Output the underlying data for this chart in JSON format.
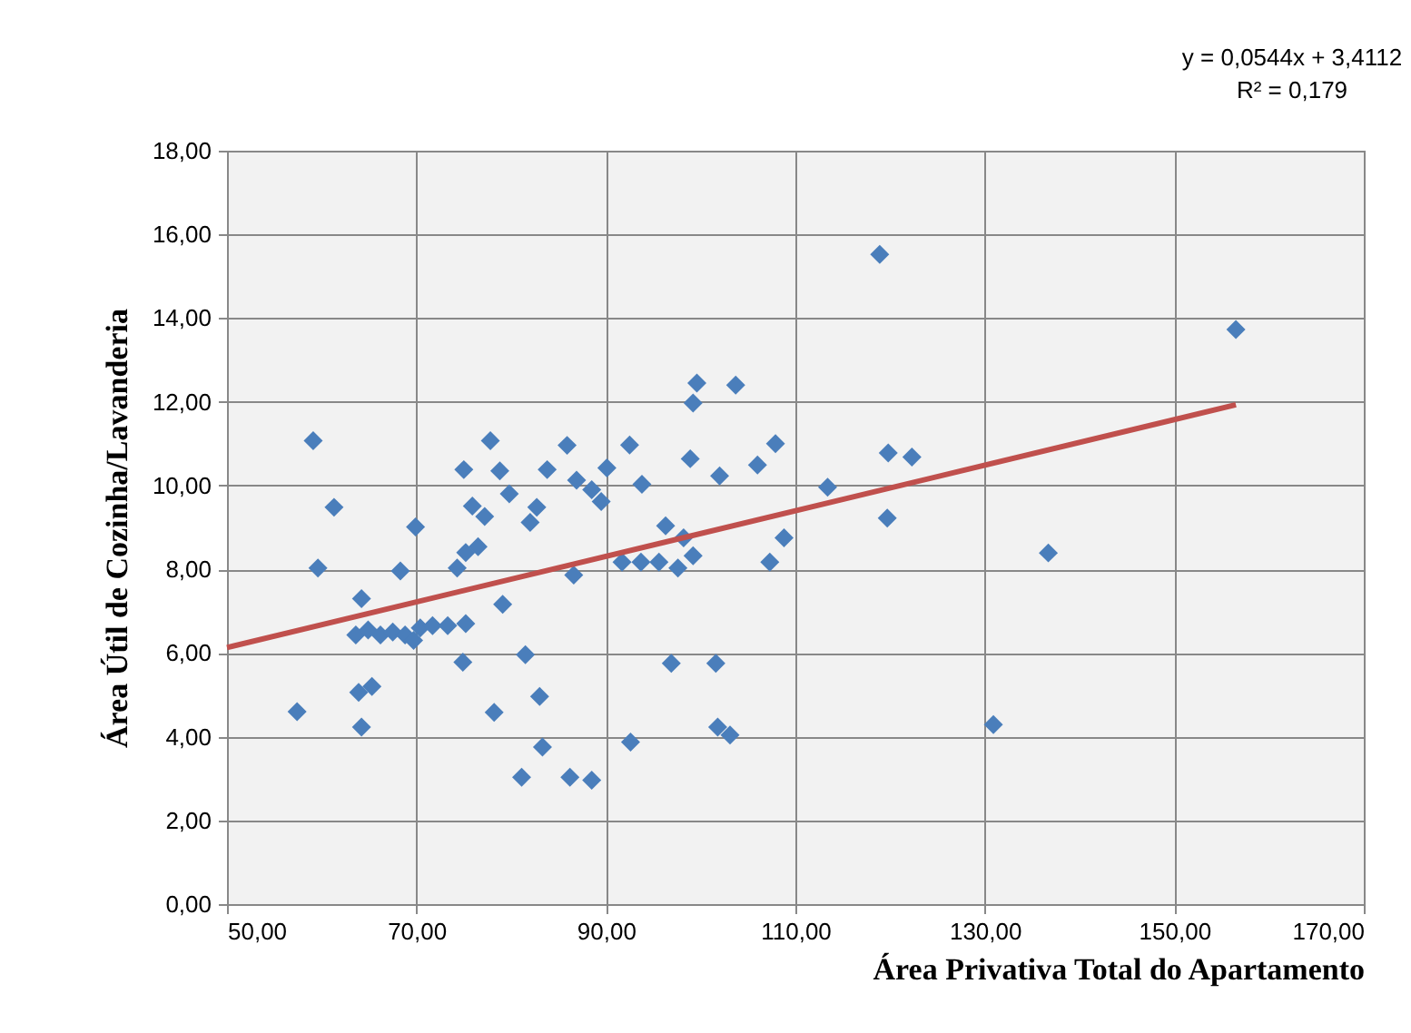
{
  "chart_data": {
    "type": "scatter",
    "xlabel": "Área Privativa Total do Apartamento",
    "ylabel": "Área Útil de Cozinha/Lavanderia",
    "annotations": [
      "y = 0,0544x + 3,4112",
      "R² = 0,179"
    ],
    "xlim": [
      50,
      170
    ],
    "xticks": [
      {
        "value": 50,
        "label": "50,00"
      },
      {
        "value": 70,
        "label": "70,00"
      },
      {
        "value": 90,
        "label": "90,00"
      },
      {
        "value": 110,
        "label": "110,00"
      },
      {
        "value": 130,
        "label": "130,00"
      },
      {
        "value": 150,
        "label": "150,00"
      },
      {
        "value": 170,
        "label": "170,00"
      }
    ],
    "ylim": [
      0,
      18
    ],
    "yticks": [
      {
        "value": 0,
        "label": "0,00"
      },
      {
        "value": 2,
        "label": "2,00"
      },
      {
        "value": 4,
        "label": "4,00"
      },
      {
        "value": 6,
        "label": "6,00"
      },
      {
        "value": 8,
        "label": "8,00"
      },
      {
        "value": 10,
        "label": "10,00"
      },
      {
        "value": 12,
        "label": "12,00"
      },
      {
        "value": 14,
        "label": "14,00"
      },
      {
        "value": 16,
        "label": "16,00"
      },
      {
        "value": 18,
        "label": "18,00"
      }
    ],
    "grid": true,
    "marker": "diamond",
    "series": [
      {
        "color": "#4a7ebb",
        "x": [
          59.1,
          61.3,
          59.6,
          57.4,
          64.2,
          63.9,
          65.3,
          64.2,
          69.9,
          68.3,
          63.6,
          64.9,
          66.2,
          67.5,
          68.8,
          69.7,
          70.4,
          71.7,
          73.3,
          75.2,
          79.1,
          74.9,
          78.2,
          81.5,
          83.0,
          83.3,
          81.1,
          86.2,
          88.5,
          75.0,
          77.8,
          78.8,
          79.8,
          75.9,
          77.2,
          74.3,
          75.2,
          76.5,
          82.7,
          82.0,
          83.8,
          85.9,
          86.9,
          88.5,
          89.5,
          90.1,
          86.6,
          92.5,
          93.8,
          91.7,
          93.7,
          95.6,
          96.3,
          97.6,
          98.2,
          99.2,
          98.9,
          99.2,
          99.6,
          103.7,
          102.0,
          106.0,
          107.9,
          107.3,
          108.8,
          113.4,
          118.9,
          119.8,
          122.3,
          119.7,
          96.9,
          101.6,
          92.6,
          101.8,
          103.1,
          130.9,
          136.7,
          156.5
        ],
        "values": [
          11.07,
          9.48,
          8.03,
          4.6,
          7.3,
          5.06,
          5.2,
          4.23,
          9.01,
          7.96,
          6.43,
          6.55,
          6.43,
          6.5,
          6.43,
          6.3,
          6.6,
          6.65,
          6.65,
          6.7,
          7.16,
          5.78,
          4.58,
          5.96,
          4.96,
          3.75,
          3.03,
          3.03,
          2.96,
          10.38,
          11.07,
          10.35,
          9.8,
          9.51,
          9.26,
          8.03,
          8.4,
          8.54,
          9.48,
          9.12,
          10.38,
          10.96,
          10.13,
          9.9,
          9.62,
          10.42,
          7.86,
          10.97,
          10.03,
          8.17,
          8.17,
          8.17,
          9.04,
          8.03,
          8.75,
          8.32,
          10.64,
          11.97,
          12.45,
          12.4,
          10.23,
          10.49,
          11.0,
          8.17,
          8.75,
          9.96,
          15.52,
          10.78,
          10.68,
          9.22,
          5.75,
          5.75,
          3.87,
          4.23,
          4.04,
          4.29,
          8.39,
          13.73
        ]
      },
      {
        "type": "line",
        "marker": "none",
        "color": "#c0504d",
        "x": [
          50,
          156.5
        ],
        "values": [
          6.13,
          11.93
        ]
      }
    ]
  }
}
